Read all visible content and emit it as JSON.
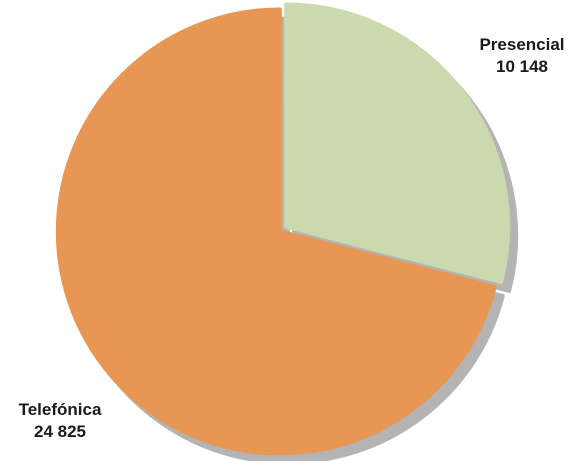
{
  "chart_data": {
    "type": "pie",
    "categories": [
      "Presencial",
      "Telefónica"
    ],
    "values": [
      10148,
      24825
    ],
    "value_labels": [
      "10 148",
      "24 825"
    ],
    "colors": [
      "#cbdaad",
      "#e89653"
    ],
    "shadow_color": "#b4b4b4",
    "legend": "none"
  }
}
